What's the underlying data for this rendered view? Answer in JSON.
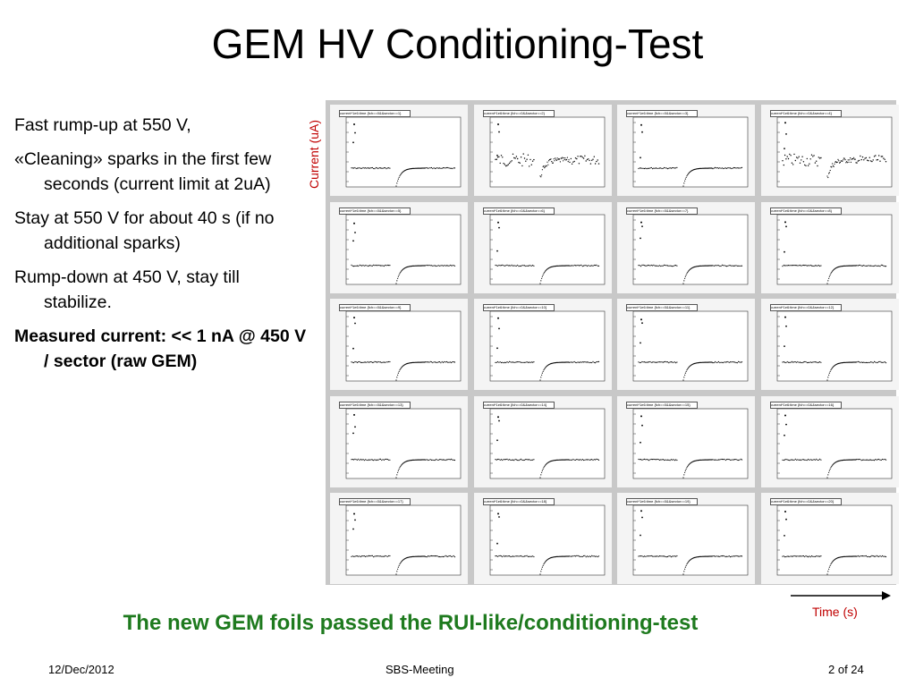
{
  "title": "GEM HV Conditioning-Test",
  "bullets": [
    {
      "text": "Fast rump-up at 550 V,",
      "bold": false
    },
    {
      "text": "«Cleaning» sparks in the first few seconds (current limit at 2uA)",
      "bold": false
    },
    {
      "text": "Stay at 550 V for about 40 s (if no additional sparks)",
      "bold": false
    },
    {
      "text": "Rump-down at 450 V, stay till stabilize.",
      "bold": false
    },
    {
      "text": "Measured current: << 1 nA @ 450 V / sector (raw GEM)",
      "bold": true
    }
  ],
  "axis_labels": {
    "y": "Current (uA)",
    "x": "Time (s)"
  },
  "plot_labels": [
    "current*1e6:time {fch==0&&sector==1}",
    "current*1e6:time {fch==0&&sector==2}",
    "current*1e6:time {fch==0&&sector==3}",
    "current*1e6:time {fch==0&&sector==4}",
    "current*1e6:time {fch==0&&sector==5}",
    "current*1e6:time {fch==0&&sector==6}",
    "current*1e6:time {fch==0&&sector==7}",
    "current*1e6:time {fch==0&&sector==8}",
    "current*1e6:time {fch==0&&sector==9}",
    "current*1e6:time {fch==0&&sector==10}",
    "current*1e6:time {fch==0&&sector==11}",
    "current*1e6:time {fch==0&&sector==12}",
    "current*1e6:time {fch==0&&sector==13}",
    "current*1e6:time {fch==0&&sector==14}",
    "current*1e6:time {fch==0&&sector==15}",
    "current*1e6:time {fch==0&&sector==16}",
    "current*1e6:time {fch==0&&sector==17}",
    "current*1e6:time {fch==0&&sector==18}",
    "current*1e6:time {fch==0&&sector==19}",
    "current*1e6:time {fch==0&&sector==20}"
  ],
  "noisy_sectors": [
    2,
    4
  ],
  "conclusion": "The new GEM foils passed the RUI-like/conditioning-test",
  "footer": {
    "date": "12/Dec/2012",
    "meeting": "SBS-Meeting",
    "page": "2 of 24"
  },
  "colors": {
    "conclusion": "#1e7a1e",
    "axis_annotation": "#c00000"
  }
}
